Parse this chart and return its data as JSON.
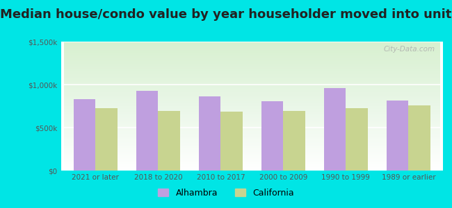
{
  "title": "Median house/condo value by year householder moved into unit",
  "categories": [
    "2021 or later",
    "2018 to 2020",
    "2010 to 2017",
    "2000 to 2009",
    "1990 to 1999",
    "1989 or earlier"
  ],
  "alhambra_values": [
    830000,
    930000,
    860000,
    810000,
    960000,
    815000
  ],
  "california_values": [
    725000,
    690000,
    685000,
    690000,
    725000,
    755000
  ],
  "alhambra_color": "#bf9fdf",
  "california_color": "#c8d490",
  "background_outer": "#00e5e5",
  "ylim": [
    0,
    1500000
  ],
  "yticks": [
    0,
    500000,
    1000000,
    1500000
  ],
  "ytick_labels": [
    "$0",
    "$500k",
    "$1,000k",
    "$1,500k"
  ],
  "watermark": "City-Data.com",
  "legend_alhambra": "Alhambra",
  "legend_california": "California",
  "bar_width": 0.35,
  "title_fontsize": 13,
  "tick_fontsize": 7.5,
  "legend_fontsize": 9
}
